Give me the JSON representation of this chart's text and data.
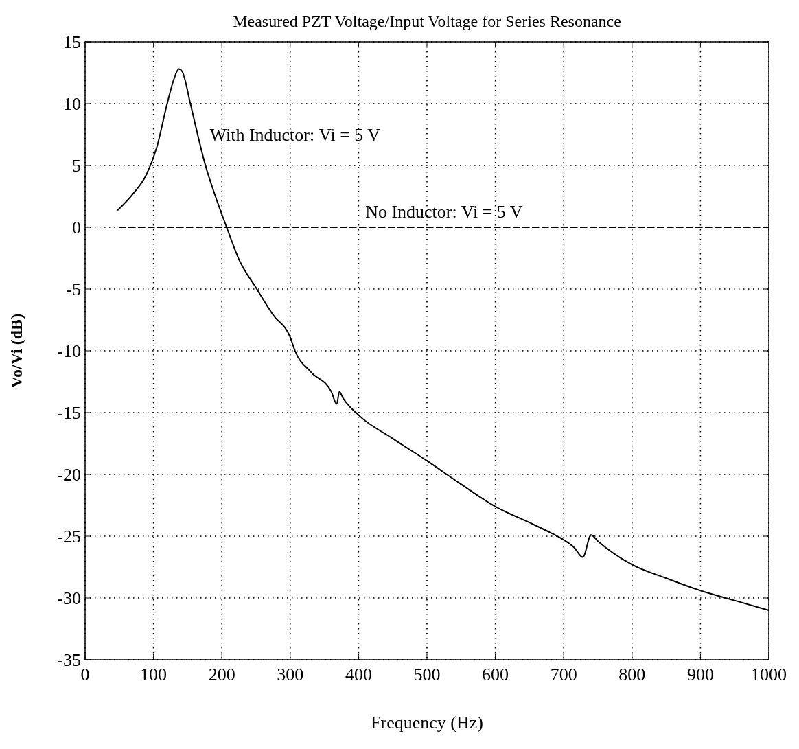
{
  "chart_data": {
    "type": "line",
    "title": "Measured PZT Voltage/Input Voltage for Series Resonance",
    "xlabel": "Frequency (Hz)",
    "ylabel": "Vo/Vi (dB)",
    "xlim": [
      0,
      1000
    ],
    "xticks": [
      0,
      100,
      200,
      300,
      400,
      500,
      600,
      700,
      800,
      900,
      1000
    ],
    "ylim": [
      -35,
      15
    ],
    "yticks": [
      -35,
      -30,
      -25,
      -20,
      -15,
      -10,
      -5,
      0,
      5,
      10,
      15
    ],
    "grid": true,
    "marker": "none",
    "series": [
      {
        "name": "With Inductor: Vi = 5 V",
        "color": "#000000",
        "line_style": "solid",
        "x": [
          48,
          70,
          90,
          105,
          120,
          130,
          137,
          142,
          154,
          165,
          176,
          190,
          207,
          225,
          250,
          275,
          300,
          307,
          330,
          360,
          368,
          372,
          377,
          400,
          450,
          500,
          550,
          600,
          650,
          680,
          700,
          715,
          728,
          740,
          750,
          800,
          850,
          900,
          950,
          1000
        ],
        "values": [
          1.4,
          2.7,
          4.3,
          6.5,
          10,
          12,
          12.8,
          12.6,
          10,
          7.4,
          5,
          2.6,
          0,
          -2.6,
          -4.9,
          -7.1,
          -8.9,
          -10,
          -11.7,
          -13.3,
          -14.3,
          -13.3,
          -13.8,
          -15.2,
          -17.1,
          -18.9,
          -20.8,
          -22.6,
          -23.9,
          -24.7,
          -25.3,
          -25.9,
          -26.7,
          -24.9,
          -25.4,
          -27.3,
          -28.4,
          -29.4,
          -30.2,
          -31
        ]
      },
      {
        "name": "No Inductor: Vi = 5 V",
        "color": "#000000",
        "line_style": "dashed",
        "x": [
          50,
          1000
        ],
        "values": [
          0,
          0
        ]
      }
    ]
  }
}
